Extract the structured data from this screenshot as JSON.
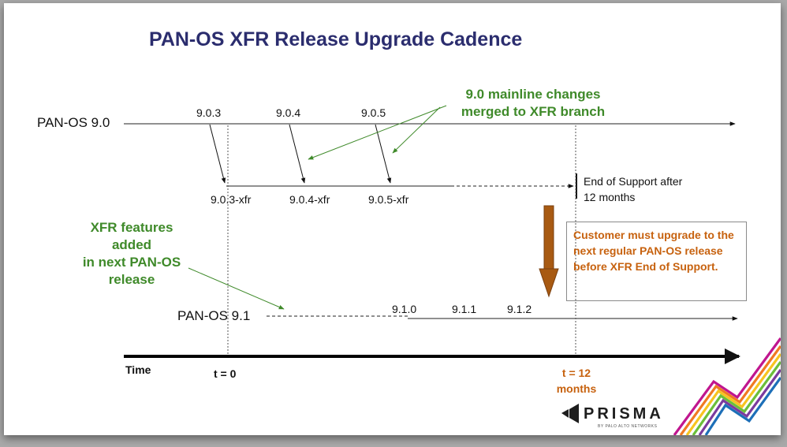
{
  "title": "PAN-OS XFR Release Upgrade Cadence",
  "rows": {
    "panos_90": "PAN-OS 9.0",
    "panos_91": "PAN-OS 9.1"
  },
  "versions_90": [
    "9.0.3",
    "9.0.4",
    "9.0.5"
  ],
  "versions_xfr": [
    "9.0.3-xfr",
    "9.0.4-xfr",
    "9.0.5-xfr"
  ],
  "versions_91": [
    "9.1.0",
    "9.1.1",
    "9.1.2"
  ],
  "annotations": {
    "mainline_line1": "9.0 mainline changes",
    "mainline_line2": "merged to XFR branch",
    "xfr_line1": "XFR features",
    "xfr_line2": "added",
    "xfr_line3": "in next PAN-OS",
    "xfr_line4": "release",
    "eos_line1": "End of Support after",
    "eos_line2": "12 months"
  },
  "callout": "Customer must upgrade to the next regular PAN-OS release before XFR End of Support.",
  "time_axis": {
    "label": "Time",
    "t0": "t = 0",
    "t12_line1": "t = 12",
    "t12_line2": "months"
  },
  "brand": {
    "name": "PRISMA",
    "subtitle": "BY PALO ALTO NETWORKS"
  },
  "colors": {
    "title": "#2b2d6e",
    "green": "#3f8a2a",
    "orange": "#c7620f",
    "brown_arrow": "#a85a12",
    "stripes": [
      "#c0168f",
      "#f07a22",
      "#f7c420",
      "#6bbf3a",
      "#7a3b9e",
      "#1d6fb8"
    ]
  },
  "icons": [
    "prisma-logo-icon",
    "down-arrow-icon"
  ]
}
